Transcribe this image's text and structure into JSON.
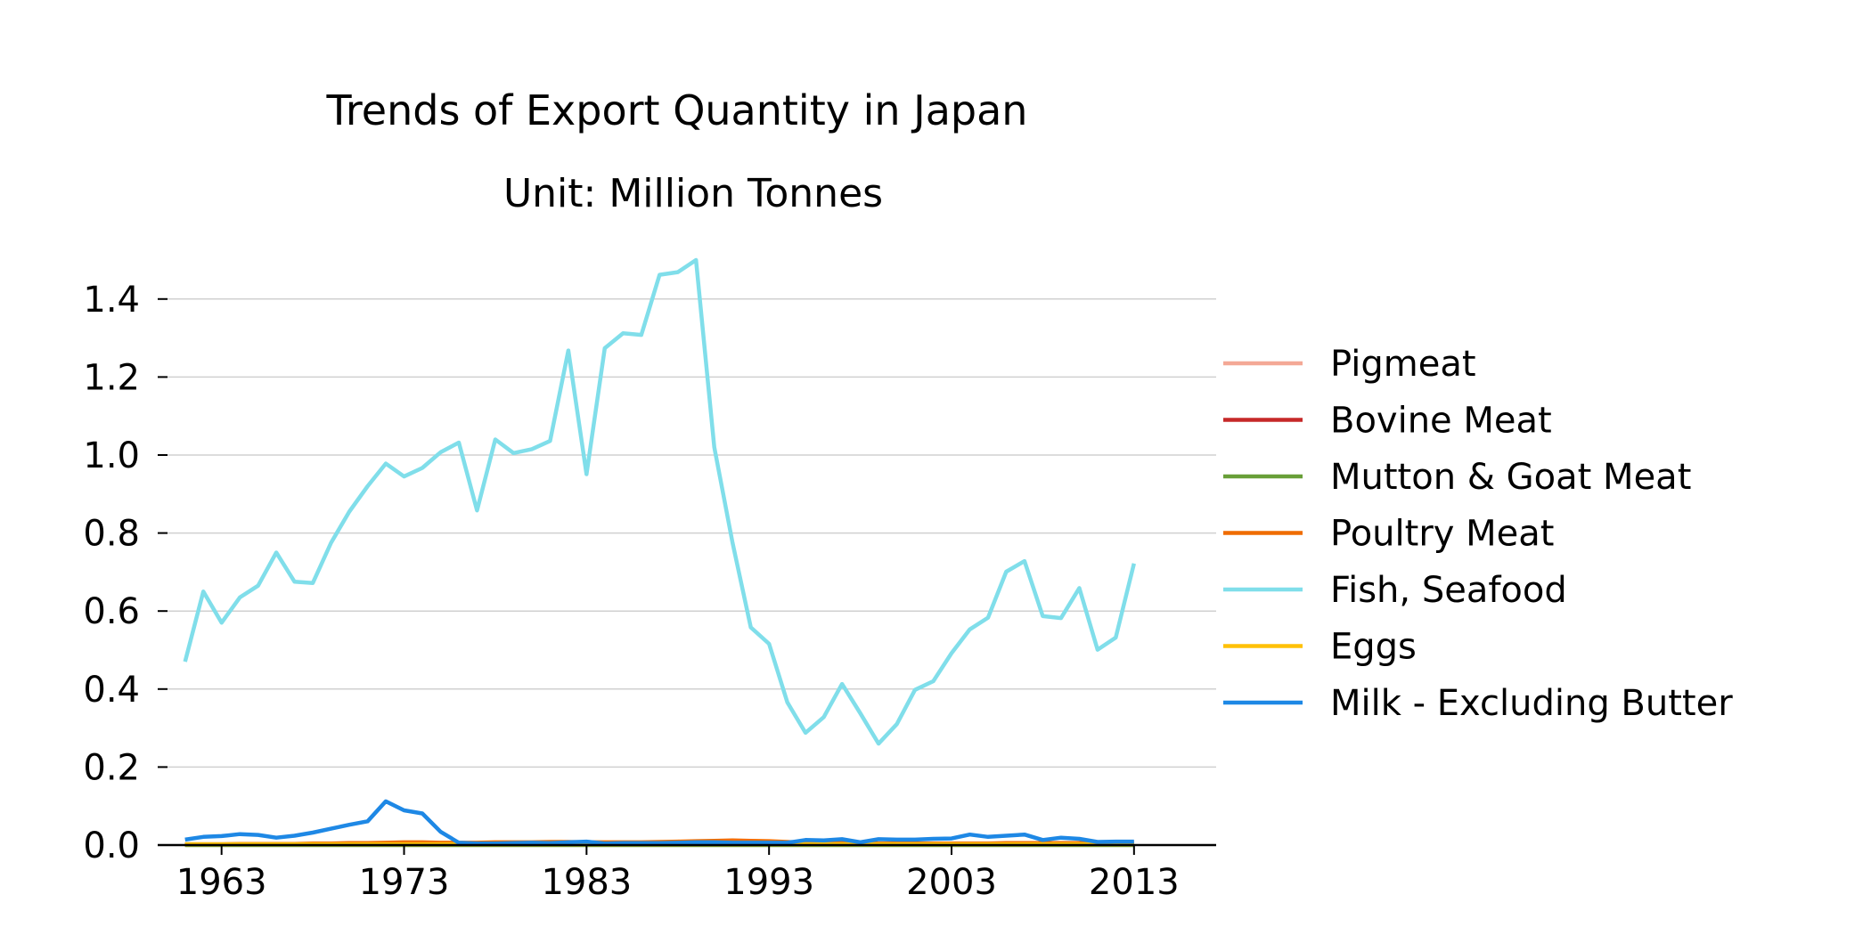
{
  "chart_data": {
    "type": "line",
    "title": "Trends of Export Quantity in Japan",
    "subtitle": "Unit: Million Tonnes",
    "xlabel": "",
    "ylabel": "",
    "xlim": [
      1959.5,
      2017.5
    ],
    "ylim": [
      0,
      1.5
    ],
    "xticks": [
      1963,
      1973,
      1983,
      1993,
      2003,
      2013
    ],
    "xtick_labels": [
      "1963",
      "1973",
      "1983",
      "1993",
      "2003",
      "2013"
    ],
    "yticks": [
      0,
      0.2,
      0.4,
      0.6,
      0.8,
      1.0,
      1.2,
      1.4
    ],
    "ytick_labels": [
      "0.0",
      "0.2",
      "0.4",
      "0.6",
      "0.8",
      "1.0",
      "1.2",
      "1.4"
    ],
    "grid": "horizontal",
    "legend_position": "right",
    "x": [
      1961,
      1962,
      1963,
      1964,
      1965,
      1966,
      1967,
      1968,
      1969,
      1970,
      1971,
      1972,
      1973,
      1974,
      1975,
      1976,
      1977,
      1978,
      1979,
      1980,
      1981,
      1982,
      1983,
      1984,
      1985,
      1986,
      1987,
      1988,
      1989,
      1990,
      1991,
      1992,
      1993,
      1994,
      1995,
      1996,
      1997,
      1998,
      1999,
      2000,
      2001,
      2002,
      2003,
      2004,
      2005,
      2006,
      2007,
      2008,
      2009,
      2010,
      2011,
      2012,
      2013
    ],
    "series": [
      {
        "name": "Pigmeat",
        "color": "#f4a896",
        "values": [
          0.002,
          0.002,
          0.002,
          0.002,
          0.002,
          0.002,
          0.002,
          0.002,
          0.002,
          0.002,
          0.002,
          0.002,
          0.002,
          0.002,
          0.002,
          0.002,
          0.002,
          0.002,
          0.002,
          0.002,
          0.002,
          0.002,
          0.002,
          0.002,
          0.002,
          0.002,
          0.002,
          0.002,
          0.002,
          0.002,
          0.002,
          0.002,
          0.002,
          0.002,
          0.002,
          0.002,
          0.002,
          0.002,
          0.002,
          0.002,
          0.002,
          0.002,
          0.002,
          0.002,
          0.002,
          0.002,
          0.002,
          0.002,
          0.002,
          0.002,
          0.002,
          0.002,
          0.002
        ]
      },
      {
        "name": "Bovine Meat",
        "color": "#c62828",
        "values": [
          0.001,
          0.001,
          0.001,
          0.001,
          0.001,
          0.001,
          0.001,
          0.001,
          0.001,
          0.001,
          0.001,
          0.001,
          0.001,
          0.001,
          0.001,
          0.001,
          0.001,
          0.001,
          0.001,
          0.001,
          0.001,
          0.001,
          0.001,
          0.001,
          0.001,
          0.001,
          0.001,
          0.001,
          0.001,
          0.001,
          0.001,
          0.001,
          0.001,
          0.001,
          0.001,
          0.001,
          0.001,
          0.001,
          0.001,
          0.001,
          0.001,
          0.001,
          0.001,
          0.001,
          0.001,
          0.001,
          0.001,
          0.001,
          0.001,
          0.001,
          0.001,
          0.001,
          0.002
        ]
      },
      {
        "name": "Mutton & Goat Meat",
        "color": "#689f38",
        "values": [
          0,
          0,
          0,
          0,
          0,
          0,
          0,
          0,
          0,
          0,
          0,
          0,
          0,
          0,
          0,
          0,
          0,
          0,
          0,
          0,
          0,
          0,
          0,
          0,
          0,
          0,
          0,
          0,
          0,
          0,
          0,
          0,
          0,
          0,
          0,
          0,
          0,
          0,
          0,
          0,
          0,
          0,
          0,
          0,
          0,
          0,
          0,
          0,
          0,
          0,
          0,
          0,
          0
        ]
      },
      {
        "name": "Poultry Meat",
        "color": "#ef6c00",
        "values": [
          0.002,
          0.002,
          0.002,
          0.003,
          0.003,
          0.003,
          0.003,
          0.004,
          0.004,
          0.005,
          0.005,
          0.006,
          0.007,
          0.007,
          0.006,
          0.006,
          0.006,
          0.007,
          0.007,
          0.007,
          0.008,
          0.008,
          0.007,
          0.007,
          0.007,
          0.007,
          0.008,
          0.009,
          0.01,
          0.011,
          0.012,
          0.011,
          0.01,
          0.008,
          0.006,
          0.005,
          0.005,
          0.004,
          0.004,
          0.004,
          0.004,
          0.004,
          0.004,
          0.004,
          0.004,
          0.005,
          0.005,
          0.005,
          0.005,
          0.005,
          0.005,
          0.006,
          0.006
        ]
      },
      {
        "name": "Fish, Seafood",
        "color": "#80deea",
        "values": [
          0.47,
          0.65,
          0.57,
          0.635,
          0.665,
          0.75,
          0.675,
          0.672,
          0.775,
          0.855,
          0.92,
          0.978,
          0.945,
          0.967,
          1.007,
          1.032,
          0.858,
          1.04,
          1.005,
          1.015,
          1.036,
          1.268,
          0.951,
          1.274,
          1.312,
          1.308,
          1.462,
          1.469,
          1.5,
          1.02,
          0.775,
          0.558,
          0.516,
          0.366,
          0.288,
          0.328,
          0.413,
          0.338,
          0.26,
          0.31,
          0.398,
          0.42,
          0.492,
          0.553,
          0.583,
          0.701,
          0.728,
          0.587,
          0.582,
          0.659,
          0.501,
          0.532,
          0.722
        ]
      },
      {
        "name": "Eggs",
        "color": "#ffc107",
        "values": [
          0.002,
          0.002,
          0.002,
          0.002,
          0.002,
          0.002,
          0.002,
          0.002,
          0.002,
          0.002,
          0.002,
          0.002,
          0.002,
          0.002,
          0.002,
          0.002,
          0.002,
          0.002,
          0.002,
          0.002,
          0.002,
          0.002,
          0.002,
          0.002,
          0.002,
          0.002,
          0.002,
          0.002,
          0.002,
          0.002,
          0.002,
          0.002,
          0.002,
          0.002,
          0.002,
          0.002,
          0.002,
          0.002,
          0.002,
          0.002,
          0.002,
          0.002,
          0.002,
          0.002,
          0.002,
          0.002,
          0.002,
          0.002,
          0.002,
          0.002,
          0.002,
          0.002,
          0.002
        ]
      },
      {
        "name": "Milk - Excluding Butter",
        "color": "#1e88e5",
        "values": [
          0.014,
          0.021,
          0.023,
          0.028,
          0.026,
          0.019,
          0.024,
          0.032,
          0.042,
          0.052,
          0.061,
          0.112,
          0.089,
          0.081,
          0.034,
          0.006,
          0.004,
          0.004,
          0.005,
          0.006,
          0.005,
          0.007,
          0.009,
          0.004,
          0.005,
          0.005,
          0.005,
          0.006,
          0.007,
          0.007,
          0.006,
          0.006,
          0.006,
          0.006,
          0.013,
          0.012,
          0.015,
          0.007,
          0.015,
          0.014,
          0.014,
          0.016,
          0.017,
          0.027,
          0.021,
          0.024,
          0.027,
          0.013,
          0.019,
          0.016,
          0.008,
          0.009,
          0.009
        ]
      }
    ]
  }
}
